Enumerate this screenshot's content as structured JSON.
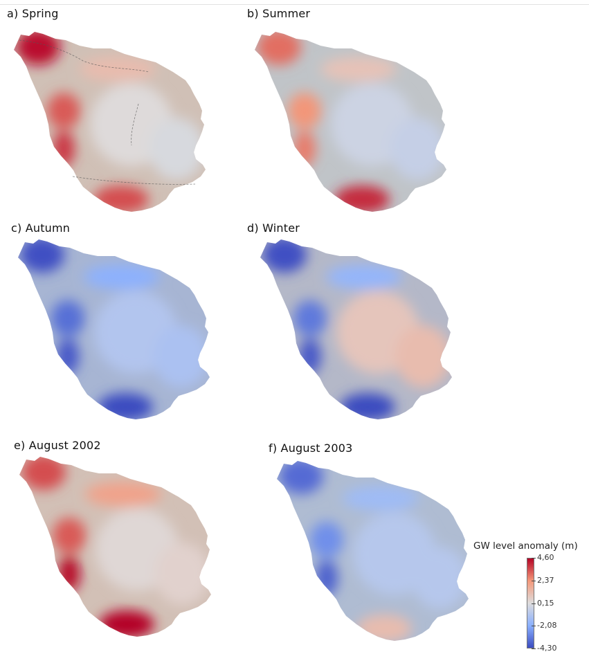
{
  "panels": [
    {
      "label": "a) Spring",
      "base": "#d0c0b6",
      "hotspots": {
        "nw": 4.4,
        "wu": 3.3,
        "wl": 3.8,
        "s": 3.5,
        "ne": 1.2,
        "center": 0.2,
        "east": 0.0
      },
      "contours": true
    },
    {
      "label": "b) Summer",
      "base": "#c0c4c8",
      "hotspots": {
        "nw": 3.0,
        "wu": 2.4,
        "wl": 2.8,
        "s": 4.0,
        "ne": 1.0,
        "center": -0.3,
        "east": -0.5
      },
      "contours": false
    },
    {
      "label": "c) Autumn",
      "base": "#a7b5d3",
      "hotspots": {
        "nw": -4.2,
        "wu": -3.5,
        "wl": -4.0,
        "s": -4.3,
        "ne": -2.0,
        "center": -1.0,
        "east": -1.2
      },
      "contours": false
    },
    {
      "label": "d) Winter",
      "base": "#b4b8c8",
      "hotspots": {
        "nw": -4.2,
        "wu": -3.3,
        "wl": -4.0,
        "s": -4.3,
        "ne": -1.8,
        "center": 0.9,
        "east": 1.2
      },
      "contours": false
    },
    {
      "label": "e) August 2002",
      "base": "#d2c0b6",
      "hotspots": {
        "nw": 3.5,
        "wu": 3.3,
        "wl": 4.5,
        "s": 4.6,
        "ne": 2.0,
        "center": 0.3,
        "east": 0.5
      },
      "contours": false
    },
    {
      "label": "f) August 2003",
      "base": "#afbcd2",
      "hotspots": {
        "nw": -3.6,
        "wu": -2.8,
        "wl": -3.8,
        "s": 1.2,
        "ne": -1.5,
        "center": -0.9,
        "east": -0.9
      },
      "contours": false
    }
  ],
  "legend": {
    "title": "GW level anomaly (m)",
    "ticks": [
      "4,60",
      "2,37",
      "0,15",
      "-2,08",
      "-4,30"
    ],
    "tick_values": [
      4.6,
      2.37,
      0.15,
      -2.08,
      -4.3
    ],
    "min": -4.3,
    "max": 4.6,
    "colors": [
      "#3b4cc0",
      "#8ab0fe",
      "#dddcdc",
      "#f4987a",
      "#b40426"
    ]
  }
}
